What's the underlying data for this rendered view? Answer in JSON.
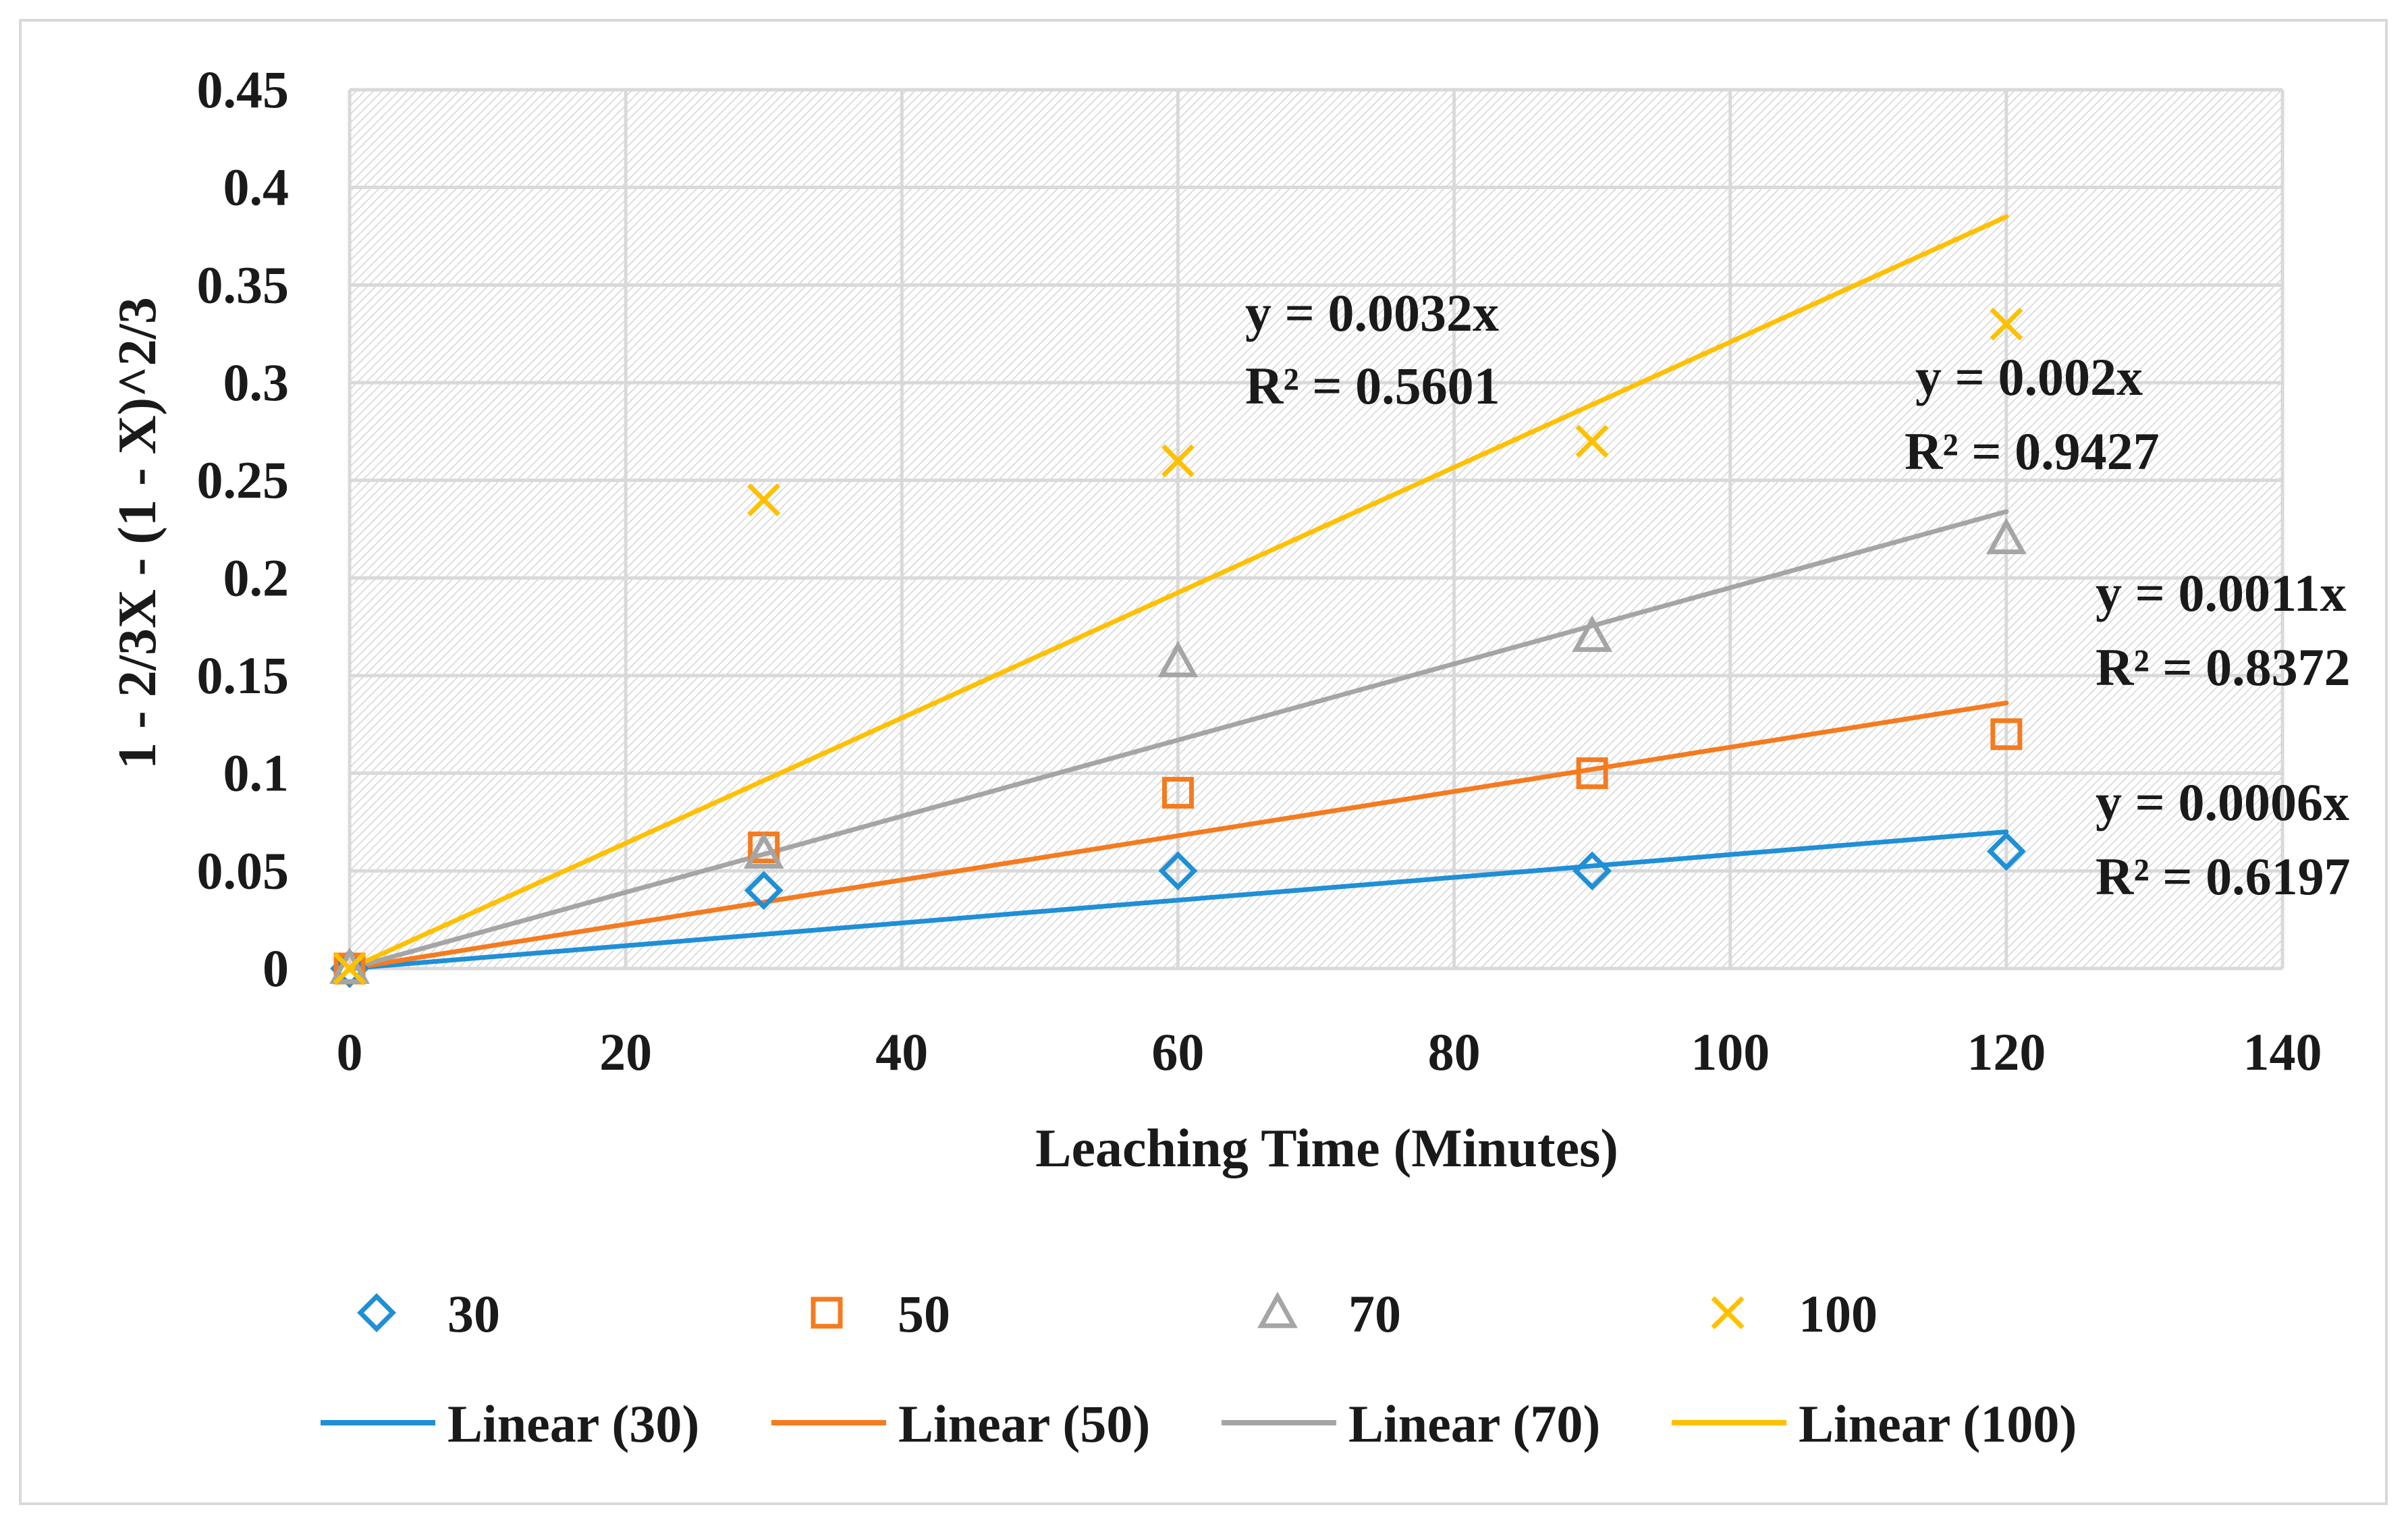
{
  "chart_data": {
    "type": "scatter",
    "title": "",
    "xlabel": "Leaching Time (Minutes)",
    "ylabel": "1 - 2/3X - (1 - X)^2/3",
    "xlim": [
      0,
      140
    ],
    "ylim": [
      0,
      0.45
    ],
    "x_ticks": [
      "0",
      "20",
      "40",
      "60",
      "80",
      "100",
      "120",
      "140"
    ],
    "y_ticks": [
      "0",
      "0.05",
      "0.1",
      "0.15",
      "0.2",
      "0.25",
      "0.3",
      "0.35",
      "0.4",
      "0.45"
    ],
    "grid": true,
    "legend_placement": "bottom",
    "series": [
      {
        "name": "30",
        "marker": "diamond",
        "color": "#1f8fd6",
        "x": [
          0,
          30,
          60,
          90,
          120
        ],
        "values": [
          0,
          0.04,
          0.05,
          0.05,
          0.06
        ],
        "trendline": {
          "name": "Linear (30)",
          "slope": 0.0006,
          "x_end": 120,
          "y_end": 0.07,
          "equation": "y = 0.0006x",
          "r2": "R² = 0.6197"
        }
      },
      {
        "name": "50",
        "marker": "square",
        "color": "#f47b20",
        "x": [
          0,
          30,
          60,
          90,
          120
        ],
        "values": [
          0,
          0.062,
          0.09,
          0.1,
          0.12
        ],
        "trendline": {
          "name": "Linear (50)",
          "slope": 0.0011,
          "x_end": 120,
          "y_end": 0.136,
          "equation": "y = 0.0011x",
          "r2": "R² = 0.8372"
        }
      },
      {
        "name": "70",
        "marker": "triangle",
        "color": "#a5a5a5",
        "x": [
          0,
          30,
          60,
          90,
          120
        ],
        "values": [
          0,
          0.059,
          0.157,
          0.17,
          0.22
        ],
        "trendline": {
          "name": "Linear (70)",
          "slope": 0.002,
          "x_end": 120,
          "y_end": 0.234,
          "equation": "y = 0.002x",
          "r2": "R² = 0.9427"
        }
      },
      {
        "name": "100",
        "marker": "x",
        "color": "#ffc000",
        "x": [
          0,
          30,
          60,
          90,
          120
        ],
        "values": [
          0,
          0.24,
          0.26,
          0.27,
          0.33
        ],
        "trendline": {
          "name": "Linear (100)",
          "slope": 0.0032,
          "x_end": 120,
          "y_end": 0.385,
          "equation": "y = 0.0032x",
          "r2": "R² = 0.5601"
        }
      }
    ]
  }
}
